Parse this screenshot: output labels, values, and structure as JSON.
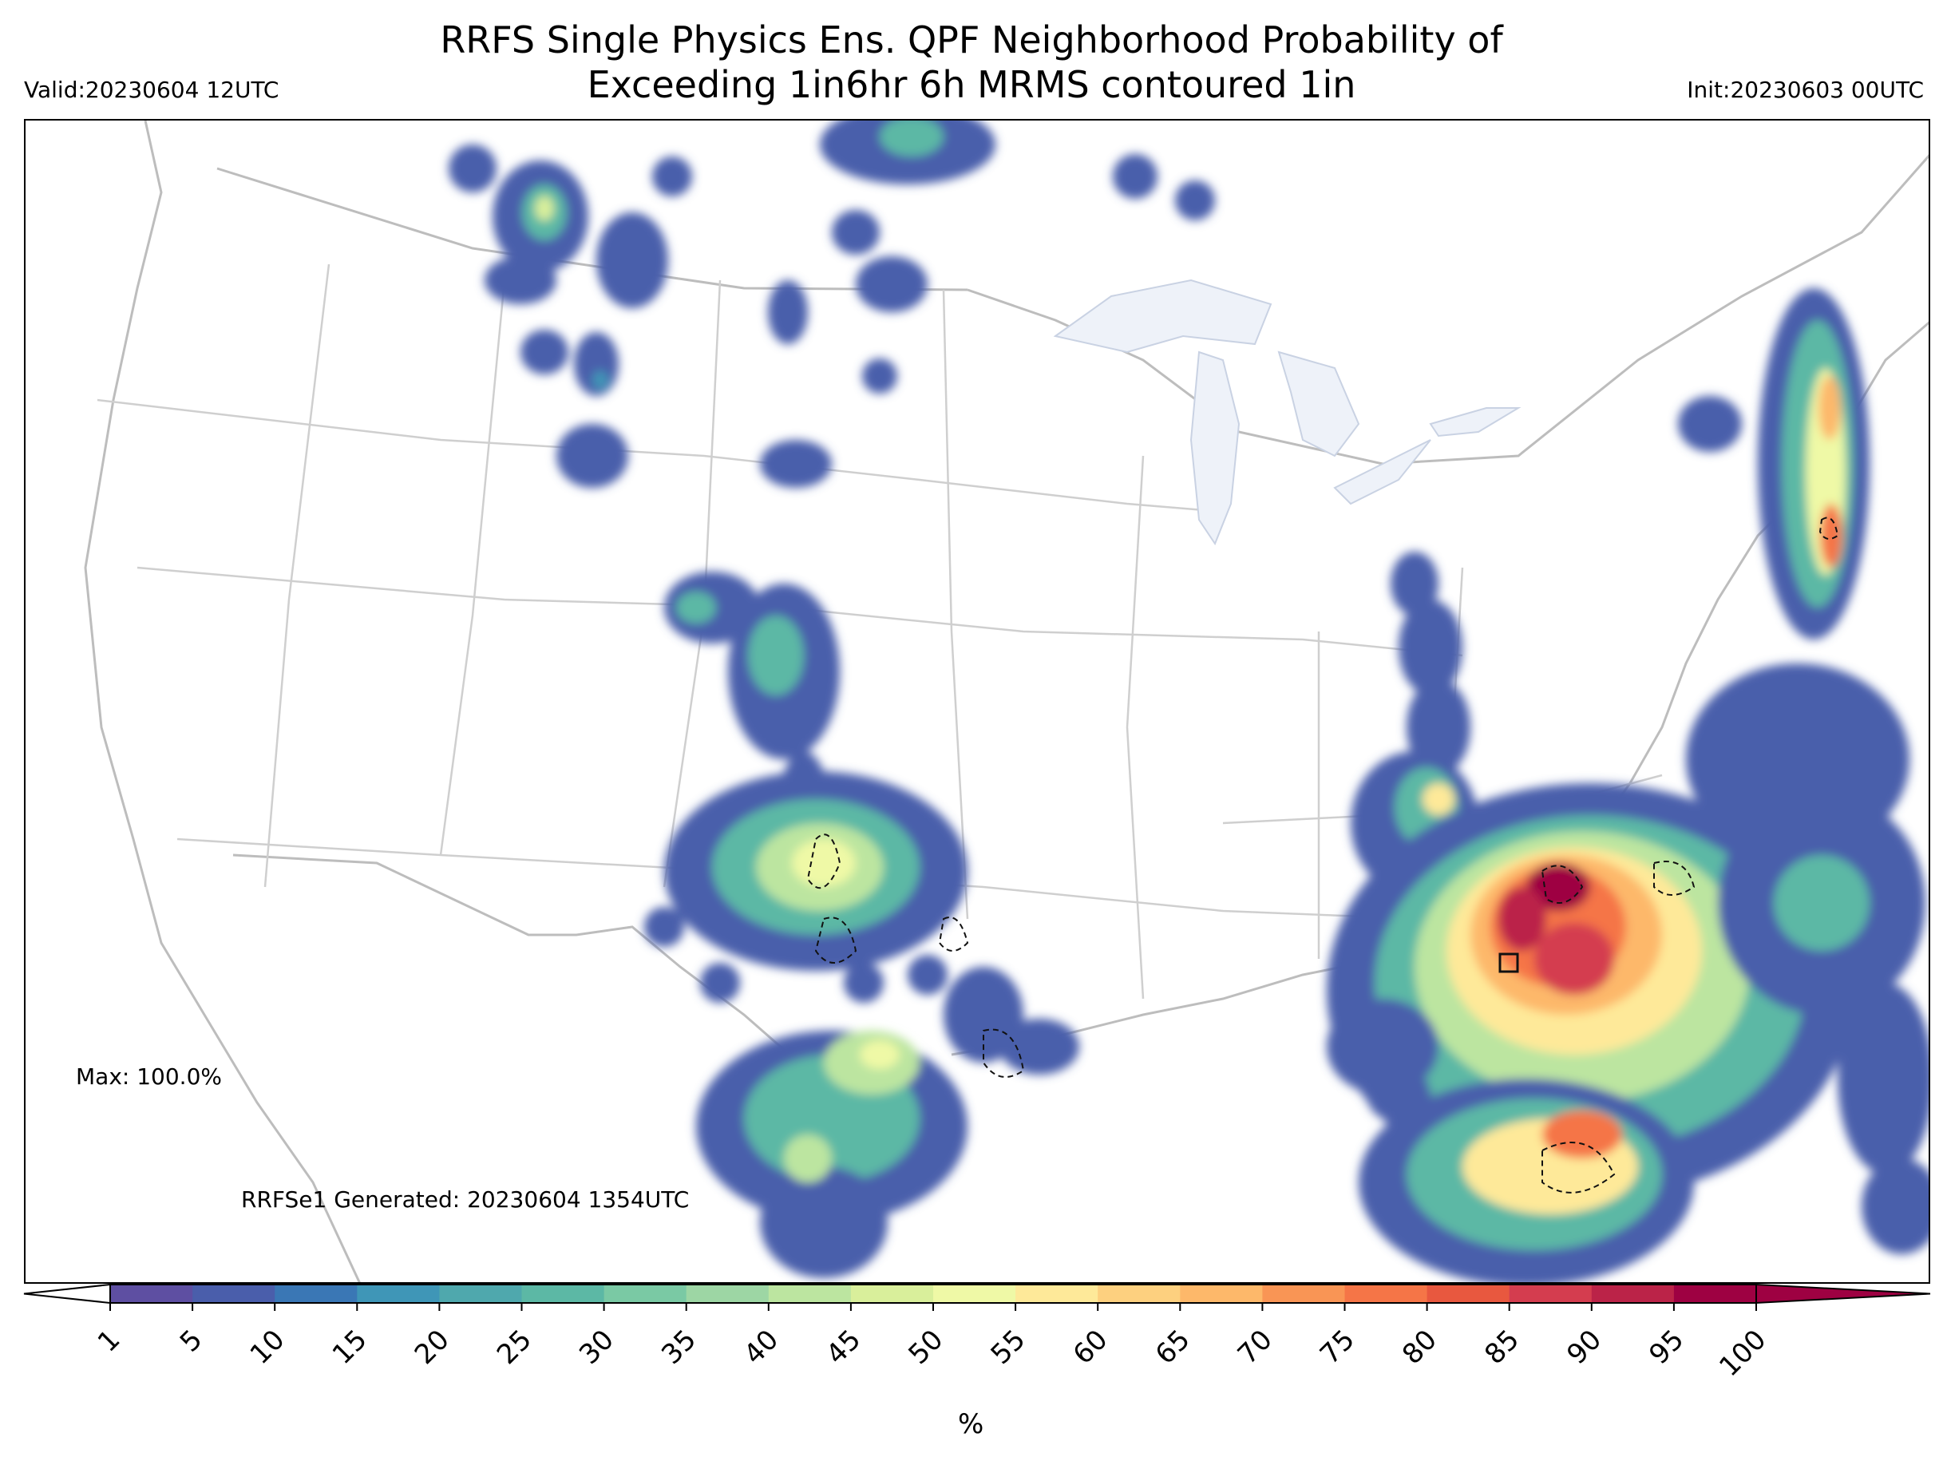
{
  "title": {
    "line1": "RRFS Single Physics Ens. QPF Neighborhood Probability of",
    "line2": "Exceeding 1in6hr 6h MRMS contoured 1in"
  },
  "valid_text": "Valid:20230604 12UTC",
  "init_text": "Init:20230603 00UTC",
  "max_text": "Max: 100.0%",
  "generated_text": "RRFSe1 Generated: 20230604 1354UTC",
  "map": {
    "region": "CONUS",
    "projection": "Lambert conformal",
    "field": "neighborhood probability (%) of exceeding 1 in / 6 hr",
    "contour_overlay": "6h MRMS 1 in (dashed black)",
    "max_marker": "open black square",
    "colors": {
      "state_lines": "#bdbdbd",
      "lakes": "#eef2f9",
      "contour": "#111111"
    }
  },
  "colorbar": {
    "unit_label": "%",
    "tick_labels": [
      "1",
      "5",
      "10",
      "15",
      "20",
      "25",
      "30",
      "35",
      "40",
      "45",
      "50",
      "55",
      "60",
      "65",
      "70",
      "75",
      "80",
      "85",
      "90",
      "95",
      "100"
    ],
    "colors": [
      "#5e4fa2",
      "#4a5eab",
      "#3a77b5",
      "#3f96b7",
      "#4fa8ad",
      "#5cb8a5",
      "#7ac9a4",
      "#9dd6a4",
      "#bce5a0",
      "#d9ef9b",
      "#eff9a6",
      "#fee999",
      "#fdd07f",
      "#fdb86a",
      "#f99555",
      "#f57547",
      "#e8583f",
      "#d43d4f",
      "#bb2348",
      "#9e0142"
    ],
    "extend": "both"
  }
}
